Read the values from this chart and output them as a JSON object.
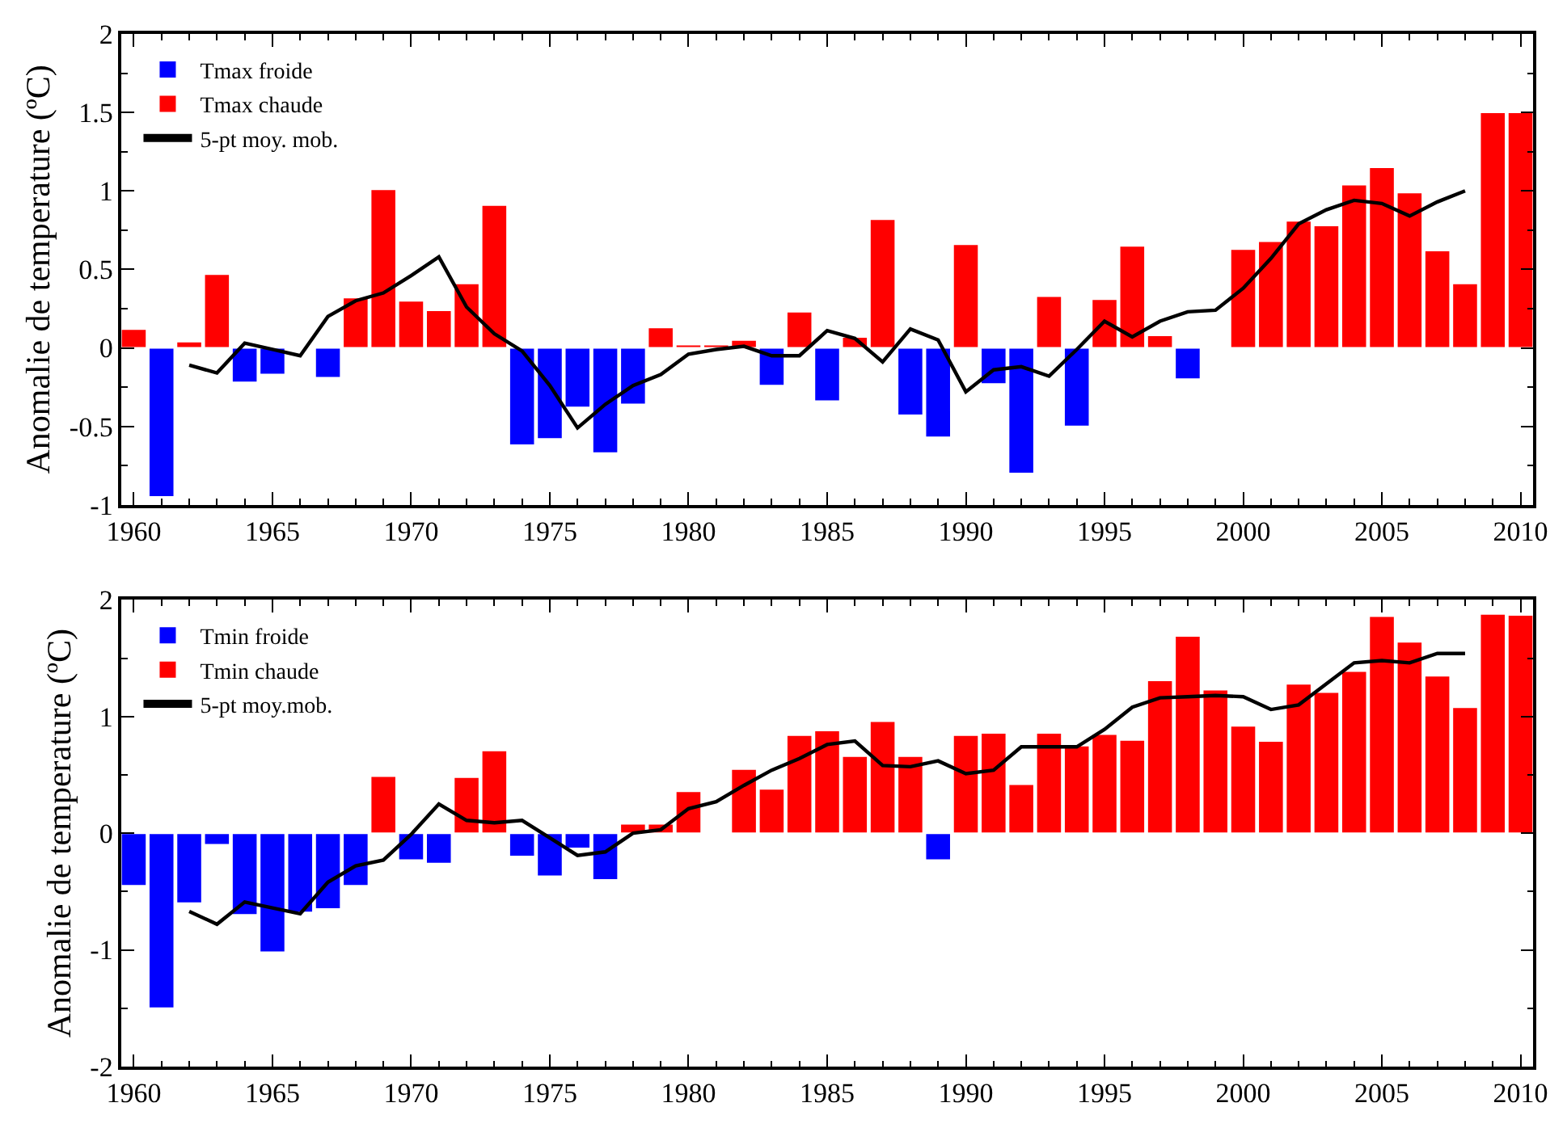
{
  "chart_data": [
    {
      "type": "bar",
      "ylabel": "Anomalie de temperature (ºC)",
      "x": [
        1960,
        1961,
        1962,
        1963,
        1964,
        1965,
        1966,
        1967,
        1968,
        1969,
        1970,
        1971,
        1972,
        1973,
        1974,
        1975,
        1976,
        1977,
        1978,
        1979,
        1980,
        1981,
        1982,
        1983,
        1984,
        1985,
        1986,
        1987,
        1988,
        1989,
        1990,
        1991,
        1992,
        1993,
        1994,
        1995,
        1996,
        1997,
        1998,
        1999,
        2000,
        2001,
        2002,
        2003,
        2004,
        2005,
        2006,
        2007,
        2008,
        2009,
        2010
      ],
      "xlim": [
        1959.55,
        2010.45
      ],
      "xticks": [
        1960,
        1965,
        1970,
        1975,
        1980,
        1985,
        1990,
        1995,
        2000,
        2005,
        2010
      ],
      "ylim": [
        -1,
        2
      ],
      "yticks": [
        -1,
        -0.5,
        0,
        0.5,
        1,
        1.5,
        2
      ],
      "legend": "top left",
      "series": [
        {
          "name": "Tmax froide",
          "color": "#0000ff",
          "values": [
            null,
            -0.95,
            null,
            null,
            -0.22,
            -0.17,
            null,
            -0.19,
            null,
            null,
            null,
            null,
            null,
            null,
            -0.62,
            -0.58,
            -0.38,
            -0.67,
            -0.36,
            null,
            null,
            null,
            null,
            -0.24,
            null,
            -0.34,
            null,
            null,
            -0.43,
            -0.57,
            null,
            -0.23,
            -0.8,
            null,
            -0.5,
            null,
            null,
            null,
            -0.2,
            null,
            null,
            null,
            null,
            null,
            null,
            null,
            null,
            null,
            null,
            null,
            null
          ]
        },
        {
          "name": "Tmax chaude",
          "color": "#ff0000",
          "values": [
            0.12,
            null,
            0.04,
            0.47,
            null,
            null,
            null,
            null,
            0.32,
            1.01,
            0.3,
            0.24,
            0.41,
            0.91,
            null,
            null,
            null,
            null,
            null,
            0.13,
            0.02,
            0.02,
            0.05,
            null,
            0.23,
            null,
            0.07,
            0.82,
            null,
            null,
            0.66,
            null,
            null,
            0.33,
            null,
            0.31,
            0.65,
            0.08,
            null,
            null,
            0.63,
            0.68,
            0.81,
            0.78,
            1.04,
            1.15,
            0.99,
            0.62,
            0.41,
            1.5,
            1.5
          ]
        },
        {
          "name": "5-pt moy. mob.",
          "type": "line",
          "color": "#000000",
          "x": [
            1962,
            1963,
            1964,
            1965,
            1966,
            1967,
            1968,
            1969,
            1970,
            1971,
            1972,
            1973,
            1974,
            1975,
            1976,
            1977,
            1978,
            1979,
            1980,
            1981,
            1982,
            1983,
            1984,
            1985,
            1986,
            1987,
            1988,
            1989,
            1990,
            1991,
            1992,
            1993,
            1994,
            1995,
            1996,
            1997,
            1998,
            1999,
            2000,
            2001,
            2002,
            2003,
            2004,
            2005,
            2006,
            2007,
            2008
          ],
          "values": [
            -0.11,
            -0.16,
            0.03,
            -0.01,
            -0.05,
            0.2,
            0.3,
            0.35,
            0.46,
            0.58,
            0.26,
            0.09,
            -0.02,
            -0.24,
            -0.51,
            -0.36,
            -0.24,
            -0.17,
            -0.04,
            -0.01,
            0.01,
            -0.05,
            -0.05,
            0.11,
            0.06,
            -0.09,
            0.12,
            0.05,
            -0.28,
            -0.14,
            -0.12,
            -0.18,
            -0.01,
            0.17,
            0.07,
            0.17,
            0.23,
            0.24,
            0.38,
            0.57,
            0.79,
            0.88,
            0.94,
            0.92,
            0.84,
            0.93,
            1.0
          ]
        }
      ]
    },
    {
      "type": "bar",
      "ylabel": "Anomalie de temperature (ºC)",
      "x": [
        1960,
        1961,
        1962,
        1963,
        1964,
        1965,
        1966,
        1967,
        1968,
        1969,
        1970,
        1971,
        1972,
        1973,
        1974,
        1975,
        1976,
        1977,
        1978,
        1979,
        1980,
        1981,
        1982,
        1983,
        1984,
        1985,
        1986,
        1987,
        1988,
        1989,
        1990,
        1991,
        1992,
        1993,
        1994,
        1995,
        1996,
        1997,
        1998,
        1999,
        2000,
        2001,
        2002,
        2003,
        2004,
        2005,
        2006,
        2007,
        2008,
        2009,
        2010
      ],
      "xlim": [
        1959.55,
        2010.45
      ],
      "xticks": [
        1960,
        1965,
        1970,
        1975,
        1980,
        1985,
        1990,
        1995,
        2000,
        2005,
        2010
      ],
      "ylim": [
        -2,
        2
      ],
      "yticks": [
        -2,
        -1,
        0,
        1,
        2
      ],
      "legend": "top left",
      "series": [
        {
          "name": "Tmin froide",
          "color": "#0000ff",
          "values": [
            -0.45,
            -1.5,
            -0.6,
            -0.1,
            -0.7,
            -1.02,
            -0.68,
            -0.65,
            -0.45,
            null,
            -0.23,
            -0.26,
            null,
            null,
            -0.2,
            -0.37,
            -0.13,
            -0.4,
            null,
            null,
            null,
            null,
            null,
            null,
            null,
            null,
            null,
            null,
            null,
            -0.23,
            null,
            null,
            null,
            null,
            null,
            null,
            null,
            null,
            null,
            null,
            null,
            null,
            null,
            null,
            null,
            null,
            null,
            null,
            null,
            null,
            null
          ]
        },
        {
          "name": "Tmin chaude",
          "color": "#ff0000",
          "values": [
            null,
            null,
            null,
            null,
            null,
            null,
            null,
            null,
            null,
            0.49,
            null,
            null,
            0.48,
            0.71,
            null,
            null,
            null,
            null,
            0.08,
            0.08,
            0.36,
            null,
            0.55,
            0.38,
            0.84,
            0.88,
            0.66,
            0.96,
            0.66,
            null,
            0.84,
            0.86,
            0.42,
            0.86,
            0.75,
            0.85,
            0.8,
            1.31,
            1.69,
            1.23,
            0.92,
            0.79,
            1.28,
            1.21,
            1.39,
            1.86,
            1.64,
            1.35,
            1.08,
            1.88,
            1.87
          ]
        },
        {
          "name": "5-pt moy.mob.",
          "type": "line",
          "color": "#000000",
          "x": [
            1962,
            1963,
            1964,
            1965,
            1966,
            1967,
            1968,
            1969,
            1970,
            1971,
            1972,
            1973,
            1974,
            1975,
            1976,
            1977,
            1978,
            1979,
            1980,
            1981,
            1982,
            1983,
            1984,
            1985,
            1986,
            1987,
            1988,
            1989,
            1990,
            1991,
            1992,
            1993,
            1994,
            1995,
            1996,
            1997,
            1998,
            1999,
            2000,
            2001,
            2002,
            2003,
            2004,
            2005,
            2006,
            2007,
            2008
          ],
          "values": [
            -0.67,
            -0.78,
            -0.59,
            -0.64,
            -0.69,
            -0.42,
            -0.28,
            -0.23,
            -0.01,
            0.25,
            0.11,
            0.09,
            0.11,
            -0.04,
            -0.19,
            -0.16,
            0.0,
            0.03,
            0.21,
            0.27,
            0.41,
            0.54,
            0.64,
            0.76,
            0.79,
            0.58,
            0.57,
            0.62,
            0.51,
            0.54,
            0.74,
            0.74,
            0.74,
            0.89,
            1.08,
            1.16,
            1.17,
            1.18,
            1.17,
            1.06,
            1.1,
            1.28,
            1.46,
            1.48,
            1.46,
            1.54,
            1.54
          ]
        }
      ]
    }
  ]
}
